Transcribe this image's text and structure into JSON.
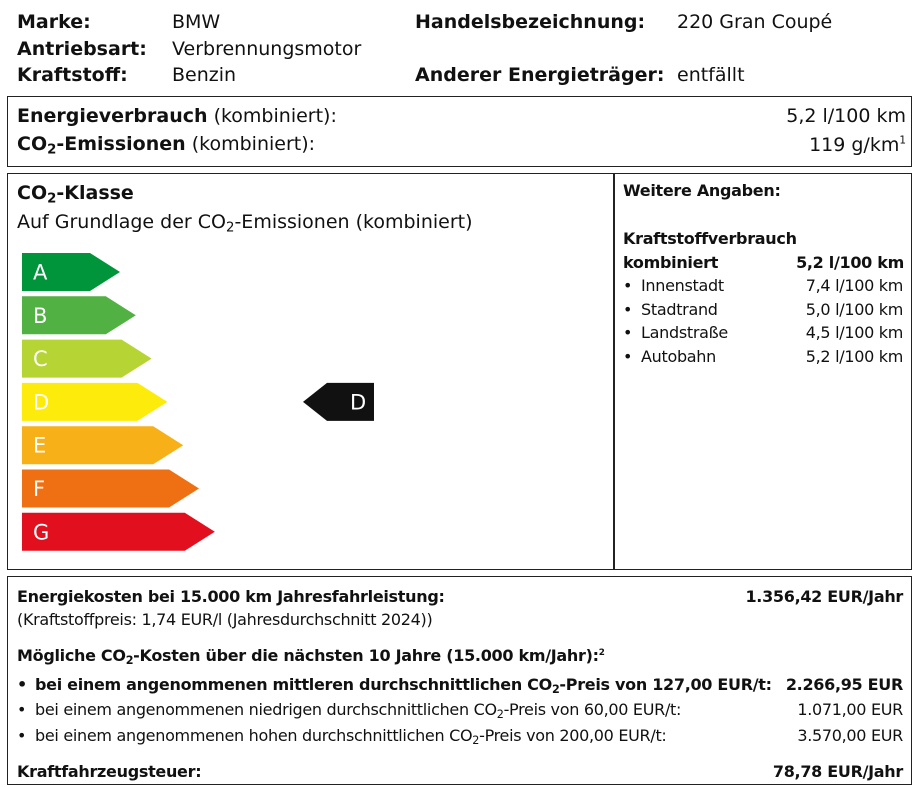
{
  "header": {
    "marke_label": "Marke:",
    "marke_value": "BMW",
    "antrieb_label": "Antriebsart:",
    "antrieb_value": "Verbrennungsmotor",
    "kraftstoff_label": "Kraftstoff:",
    "kraftstoff_value": "Benzin",
    "handel_label": "Handelsbezeichnung:",
    "handel_value": "220 Gran Coupé",
    "energie_label": "Anderer Energieträger:",
    "energie_value": "entfällt"
  },
  "consumption": {
    "verbrauch_label": "Energieverbrauch",
    "verbrauch_suffix": "(kombiniert):",
    "verbrauch_value": "5,2 l/100 km",
    "co2_label": "CO",
    "co2_sub": "2",
    "co2_label_rest": "-Emissionen",
    "co2_suffix": "(kombiniert):",
    "co2_value": "119 g/km",
    "co2_value_sup": "1"
  },
  "klasse": {
    "title": "CO",
    "title_sub": "2",
    "title_rest": "-Klasse",
    "subtitle": "Auf Grundlage der CO",
    "subtitle_sub": "2",
    "subtitle_rest": "-Emissionen (kombiniert)",
    "classes": [
      "A",
      "B",
      "C",
      "D",
      "E",
      "F",
      "G"
    ],
    "colors": [
      "#00953a",
      "#51b142",
      "#b6d433",
      "#fdec0b",
      "#f7b018",
      "#ee7012",
      "#e2101e"
    ],
    "current": "D",
    "current_index": 3
  },
  "weitere": {
    "title": "Weitere Angaben:",
    "fuel_title": "Kraftstoffverbrauch",
    "combined_label": "kombiniert",
    "combined_value": "5,2 l/100 km",
    "items": [
      {
        "label": "Innenstadt",
        "value": "7,4 l/100 km"
      },
      {
        "label": "Stadtrand",
        "value": "5,0 l/100 km"
      },
      {
        "label": "Landstraße",
        "value": "4,5 l/100 km"
      },
      {
        "label": "Autobahn",
        "value": "5,2 l/100 km"
      }
    ]
  },
  "costs": {
    "energy_label": "Energiekosten bei 15.000 km Jahresfahrleistung:",
    "energy_value": "1.356,42 EUR/Jahr",
    "fuel_price_note": "(Kraftstoffpreis: 1,74 EUR/l (Jahresdurchschnitt 2024))",
    "co2_costs_pre": "Mögliche CO",
    "co2_costs_sub": "2",
    "co2_costs_rest": "-Kosten über die nächsten 10 Jahre (15.000 km/Jahr):",
    "co2_costs_sup": "2",
    "scenarios": [
      {
        "pre": "bei einem angenommenen mittleren durchschnittlichen CO",
        "sub": "2",
        "rest": "-Preis von 127,00 EUR/t:",
        "value": "2.266,95 EUR",
        "bold": true
      },
      {
        "pre": "bei einem angenommenen niedrigen durchschnittlichen CO",
        "sub": "2",
        "rest": "-Preis von 60,00 EUR/t:",
        "value": "1.071,00 EUR",
        "bold": false
      },
      {
        "pre": "bei einem angenommenen hohen durchschnittlichen CO",
        "sub": "2",
        "rest": "-Preis von 200,00 EUR/t:",
        "value": "3.570,00 EUR",
        "bold": false
      }
    ],
    "tax_label": "Kraftfahrzeugsteuer:",
    "tax_value": "78,78 EUR/Jahr"
  }
}
